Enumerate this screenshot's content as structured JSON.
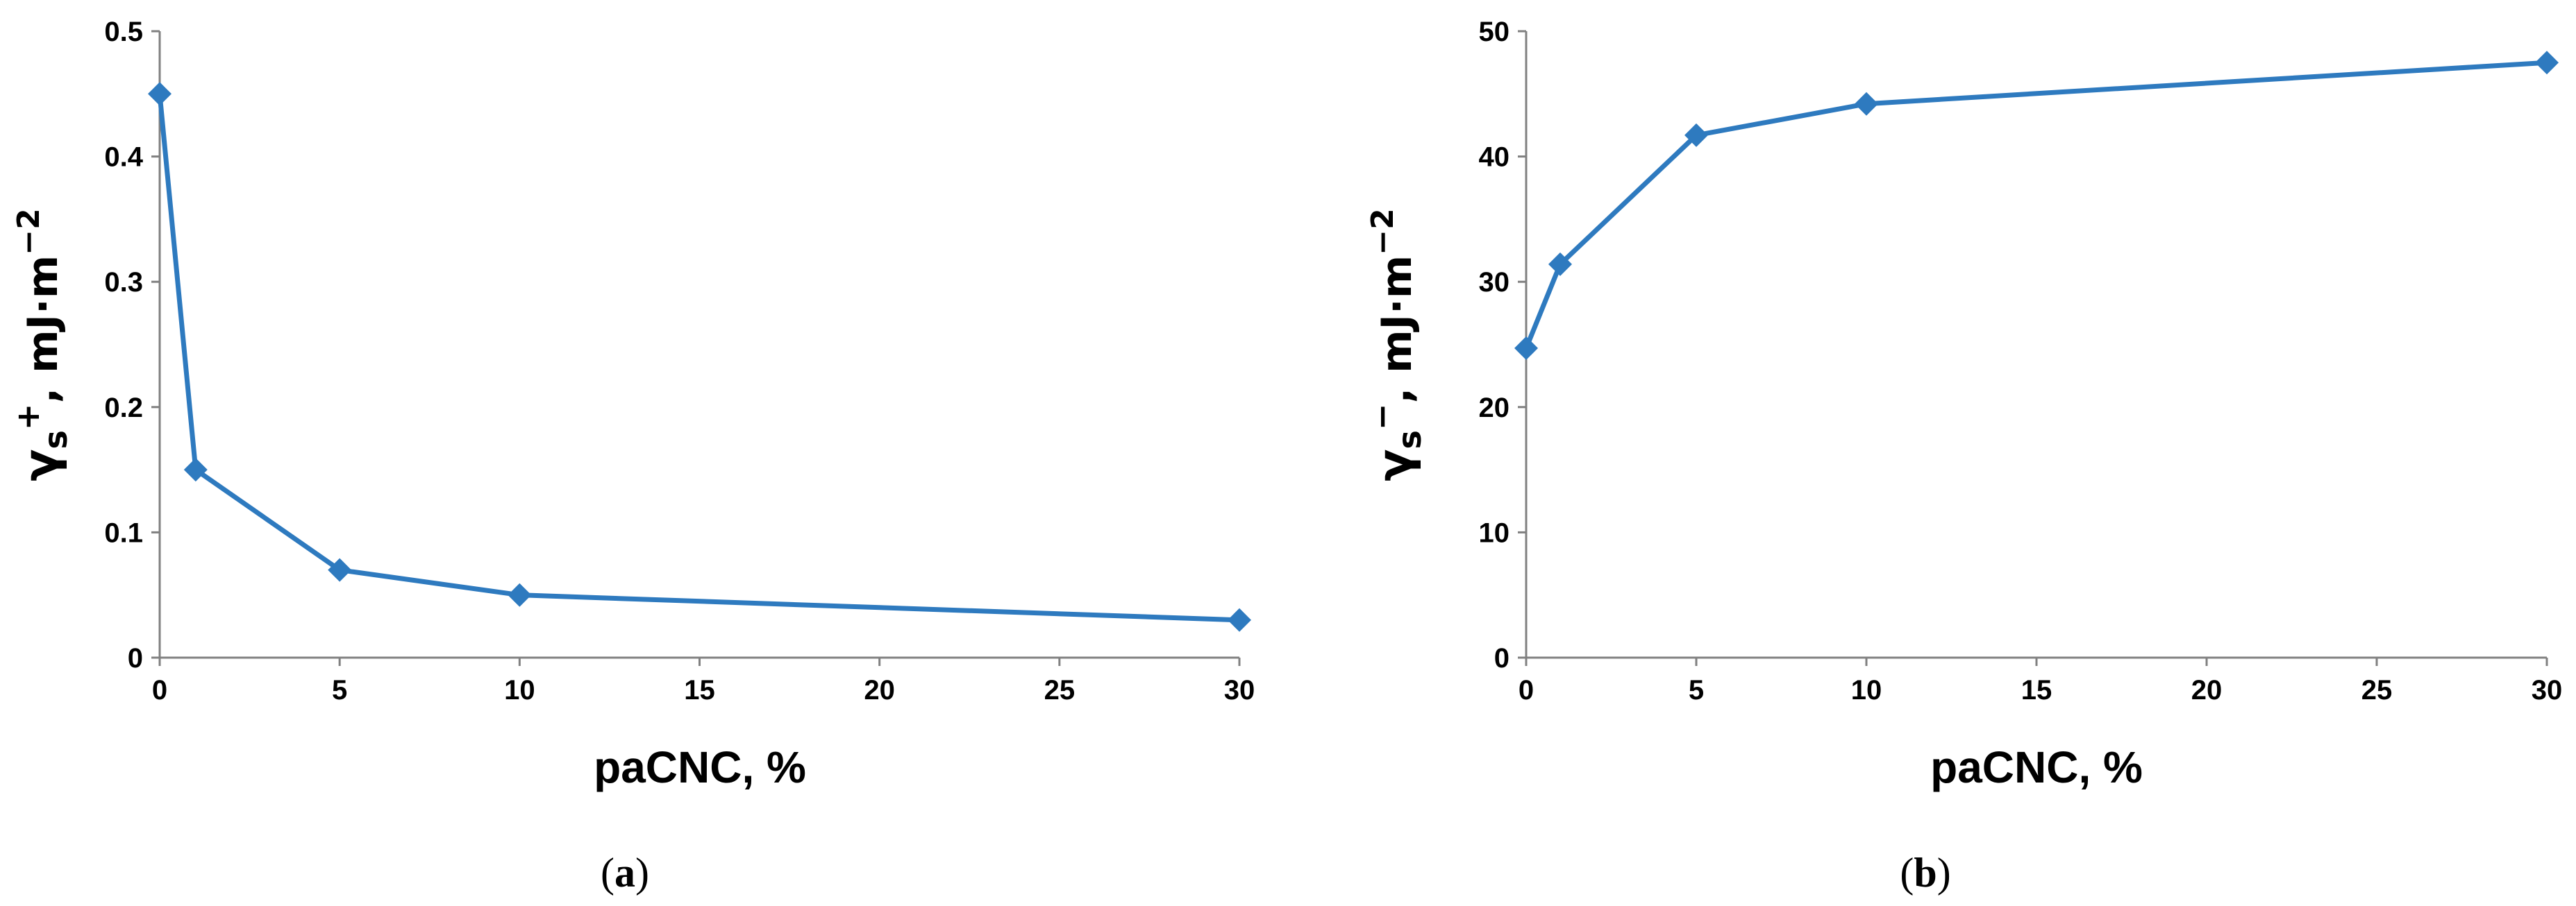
{
  "colors": {
    "series": "#2E7ABF",
    "axis": "#808080"
  },
  "chart_data": [
    {
      "type": "line",
      "panel": "a",
      "caption": "(a)",
      "caption_letter": "a",
      "xlabel": "paCNC, %",
      "ylabel": {
        "symbol": "γ",
        "subscript": "s",
        "superscript": "+",
        "unit": ", mJ·m",
        "unit_exp": "−2"
      },
      "x": [
        0,
        1,
        5,
        10,
        30
      ],
      "series": [
        {
          "values": [
            0.45,
            0.15,
            0.07,
            0.05,
            0.03
          ]
        }
      ],
      "xlim": [
        0,
        30
      ],
      "ylim": [
        0,
        0.5
      ],
      "xticks": [
        "0",
        "5",
        "10",
        "15",
        "20",
        "25",
        "30"
      ],
      "yticks": [
        "0",
        "0.1",
        "0.2",
        "0.3",
        "0.4",
        "0.5"
      ],
      "grid": false,
      "marker": "diamond"
    },
    {
      "type": "line",
      "panel": "b",
      "caption": "(b)",
      "caption_letter": "b",
      "xlabel": "paCNC, %",
      "ylabel": {
        "symbol": "γ",
        "subscript": "s",
        "superscript": "−",
        "unit": ", mJ·m",
        "unit_exp": "−2"
      },
      "x": [
        0,
        1,
        5,
        10,
        30
      ],
      "series": [
        {
          "values": [
            24.7,
            31.4,
            41.7,
            44.2,
            47.5
          ]
        }
      ],
      "xlim": [
        0,
        30
      ],
      "ylim": [
        0,
        50
      ],
      "xticks": [
        "0",
        "5",
        "10",
        "15",
        "20",
        "25",
        "30"
      ],
      "yticks": [
        "0",
        "10",
        "20",
        "30",
        "40",
        "50"
      ],
      "grid": false,
      "marker": "diamond"
    }
  ]
}
